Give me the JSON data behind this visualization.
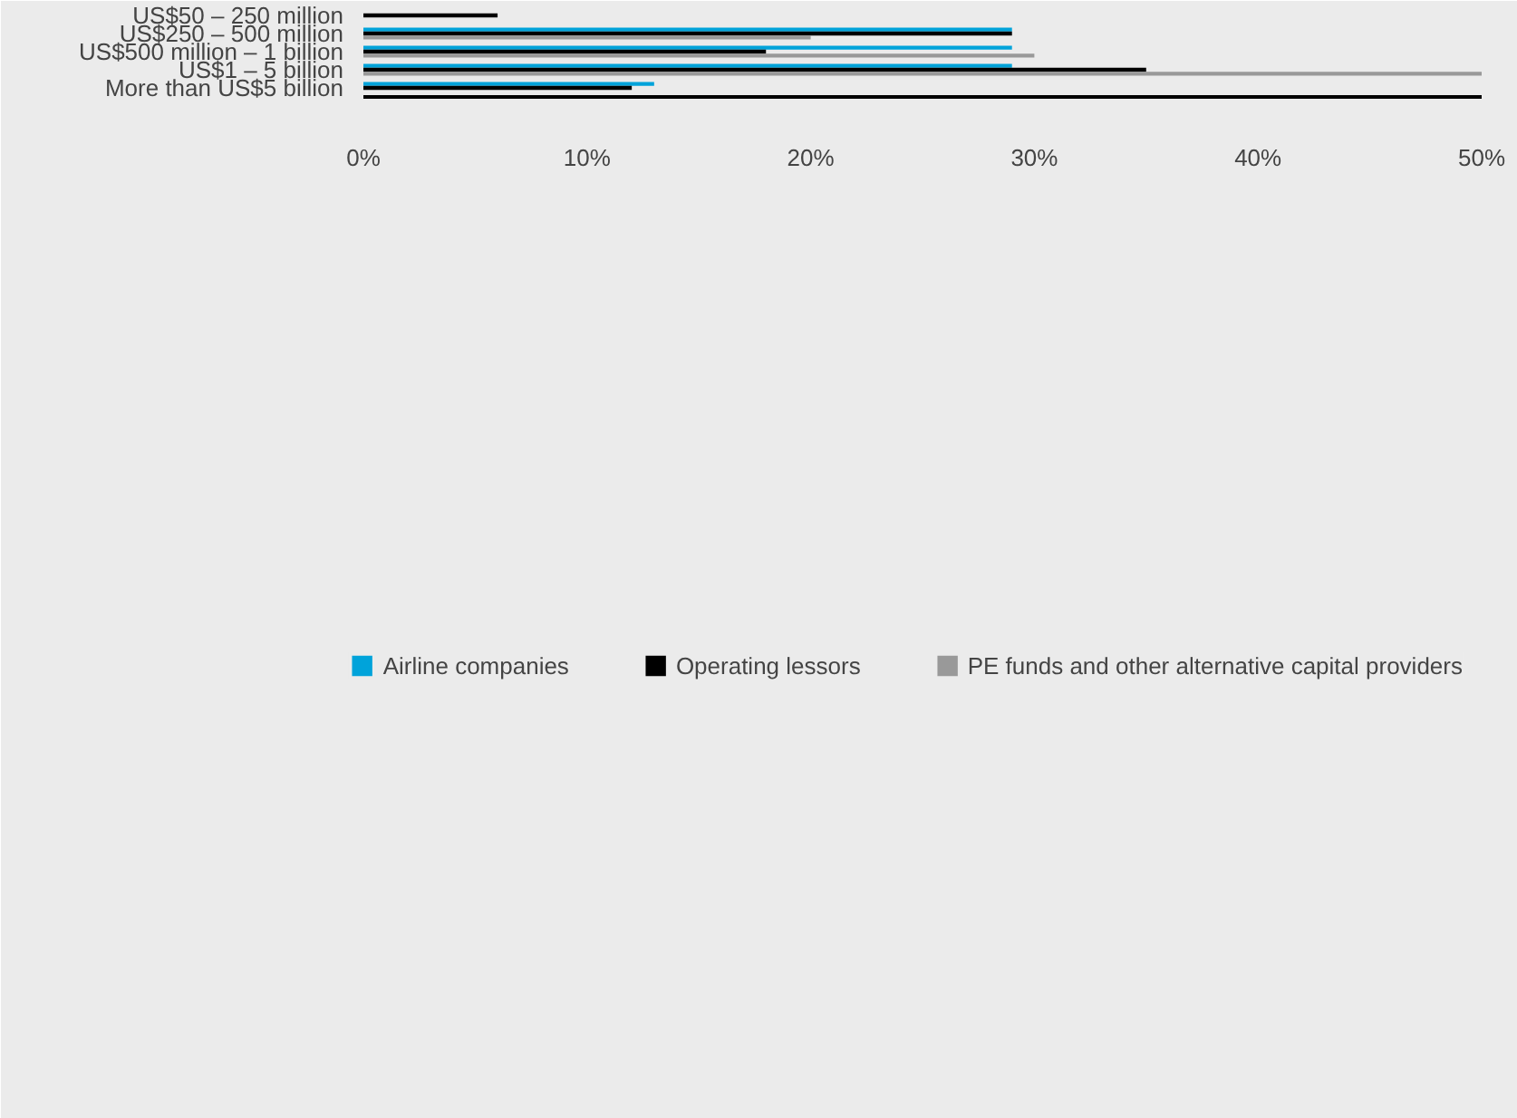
{
  "chart_data": {
    "type": "bar",
    "orientation": "horizontal",
    "categories": [
      "US$50 – 250 million",
      "US$250 – 500 million",
      "US$500 million – 1 billion",
      "US$1 – 5 billion",
      "More than US$5 billion"
    ],
    "series": [
      {
        "name": "Airline companies",
        "color": "#00a3da",
        "values": [
          null,
          29,
          29,
          29,
          13
        ]
      },
      {
        "name": "Operating lessors",
        "color": "#000000",
        "values": [
          6,
          29,
          18,
          35,
          12
        ]
      },
      {
        "name": "PE funds and other alternative capital providers",
        "color": "#999999",
        "values": [
          null,
          20,
          30,
          50,
          null
        ]
      }
    ],
    "xlim": [
      0,
      50
    ],
    "xticks": [
      {
        "value": 0,
        "label": "0%"
      },
      {
        "value": 10,
        "label": "10%"
      },
      {
        "value": 20,
        "label": "20%"
      },
      {
        "value": 30,
        "label": "30%"
      },
      {
        "value": 40,
        "label": "40%"
      },
      {
        "value": 50,
        "label": "50%"
      }
    ],
    "grid": false,
    "legend": "bottom"
  }
}
